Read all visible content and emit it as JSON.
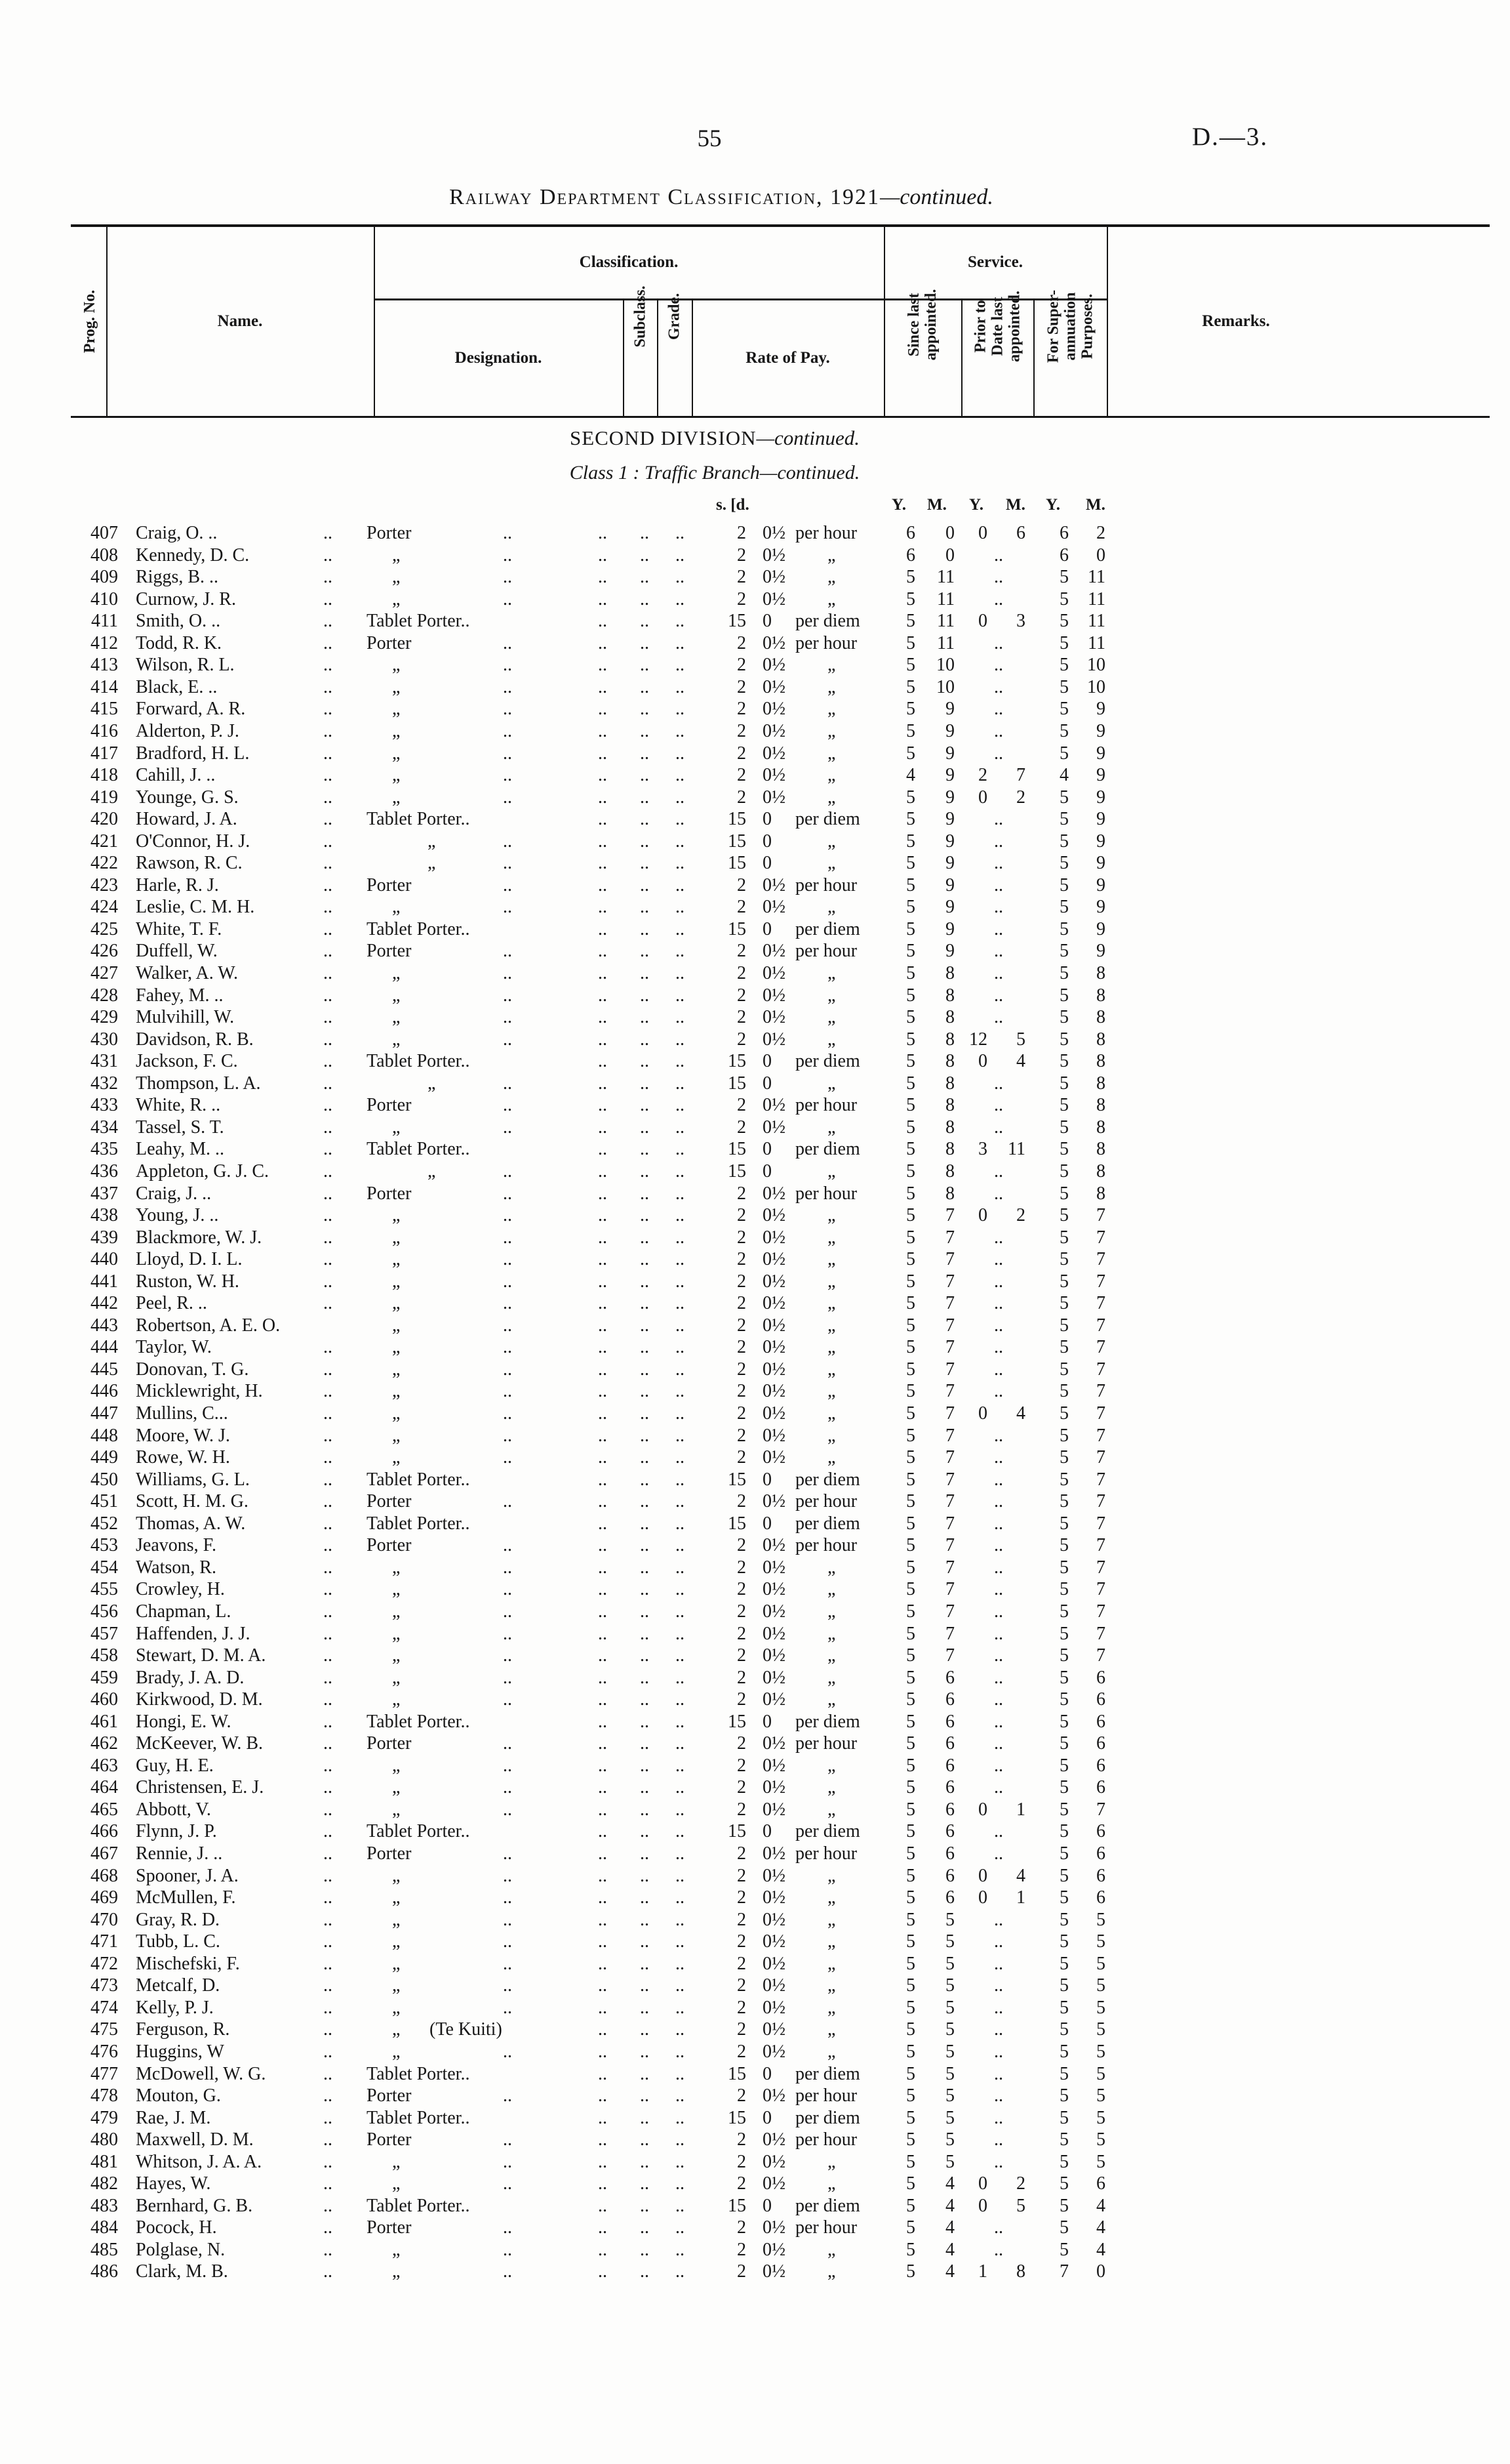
{
  "page": {
    "number": "55",
    "doc_ref": "D.—3."
  },
  "title": {
    "main": "Railway Department Classification, 1921",
    "continued": "—continued."
  },
  "header": {
    "prog": "Prog. No.",
    "name": "Name.",
    "classification": "Classification.",
    "designation": "Designation.",
    "subclass": "Subclass.",
    "grade": "Grade.",
    "rate_of_pay": "Rate of Pay.",
    "service": "Service.",
    "since": "Since last\nappointed.",
    "prior": "Prior to\nDate last\nappointed.",
    "superannuation": "For Super-\nannuation\nPurposes.",
    "remarks": "Remarks."
  },
  "section": {
    "division": "SECOND DIVISION",
    "division_continued": "—continued.",
    "class_line": "Class 1 :  Traffic Branch—continued."
  },
  "units": {
    "sd": "s. [d.",
    "ym": [
      "Y.",
      "M.",
      "Y.",
      "M.",
      "Y.",
      "M."
    ]
  },
  "marks": {
    "ditto": "„",
    "dots": "..",
    "te_kuiti": "(Te Kuiti)"
  },
  "table": {
    "rows": [
      [
        "407",
        "Craig, O. ..",
        "Porter",
        "2",
        "0½",
        "per hour",
        "6",
        "0",
        "0",
        "6",
        "6",
        "2"
      ],
      [
        "408",
        "Kennedy, D. C.",
        "ditto",
        "2",
        "0½",
        "ditto",
        "6",
        "0",
        "",
        "",
        "6",
        "0"
      ],
      [
        "409",
        "Riggs, B. ..",
        "ditto",
        "2",
        "0½",
        "ditto",
        "5",
        "11",
        "",
        "",
        "5",
        "11"
      ],
      [
        "410",
        "Curnow, J. R.",
        "ditto",
        "2",
        "0½",
        "ditto",
        "5",
        "11",
        "",
        "",
        "5",
        "11"
      ],
      [
        "411",
        "Smith, O. ..",
        "Tablet Porter..",
        "15",
        "0",
        "per diem",
        "5",
        "11",
        "0",
        "3",
        "5",
        "11"
      ],
      [
        "412",
        "Todd, R. K.",
        "Porter",
        "2",
        "0½",
        "per hour",
        "5",
        "11",
        "",
        "",
        "5",
        "11"
      ],
      [
        "413",
        "Wilson, R. L.",
        "ditto",
        "2",
        "0½",
        "ditto",
        "5",
        "10",
        "",
        "",
        "5",
        "10"
      ],
      [
        "414",
        "Black, E. ..",
        "ditto",
        "2",
        "0½",
        "ditto",
        "5",
        "10",
        "",
        "",
        "5",
        "10"
      ],
      [
        "415",
        "Forward, A. R.",
        "ditto",
        "2",
        "0½",
        "ditto",
        "5",
        "9",
        "",
        "",
        "5",
        "9"
      ],
      [
        "416",
        "Alderton, P. J.",
        "ditto",
        "2",
        "0½",
        "ditto",
        "5",
        "9",
        "",
        "",
        "5",
        "9"
      ],
      [
        "417",
        "Bradford, H. L.",
        "ditto",
        "2",
        "0½",
        "ditto",
        "5",
        "9",
        "",
        "",
        "5",
        "9"
      ],
      [
        "418",
        "Cahill, J. ..",
        "ditto",
        "2",
        "0½",
        "ditto",
        "4",
        "9",
        "2",
        "7",
        "4",
        "9"
      ],
      [
        "419",
        "Younge, G. S.",
        "ditto",
        "2",
        "0½",
        "ditto",
        "5",
        "9",
        "0",
        "2",
        "5",
        "9"
      ],
      [
        "420",
        "Howard, J. A.",
        "Tablet Porter..",
        "15",
        "0",
        "per diem",
        "5",
        "9",
        "",
        "",
        "5",
        "9"
      ],
      [
        "421",
        "O'Connor, H. J.",
        "ditto-tablet",
        "15",
        "0",
        "ditto",
        "5",
        "9",
        "",
        "",
        "5",
        "9"
      ],
      [
        "422",
        "Rawson, R. C.",
        "ditto-tablet",
        "15",
        "0",
        "ditto",
        "5",
        "9",
        "",
        "",
        "5",
        "9"
      ],
      [
        "423",
        "Harle, R. J.",
        "Porter",
        "2",
        "0½",
        "per hour",
        "5",
        "9",
        "",
        "",
        "5",
        "9"
      ],
      [
        "424",
        "Leslie, C. M. H.",
        "ditto",
        "2",
        "0½",
        "ditto",
        "5",
        "9",
        "",
        "",
        "5",
        "9"
      ],
      [
        "425",
        "White, T. F.",
        "Tablet Porter..",
        "15",
        "0",
        "per diem",
        "5",
        "9",
        "",
        "",
        "5",
        "9"
      ],
      [
        "426",
        "Duffell, W.",
        "Porter",
        "2",
        "0½",
        "per hour",
        "5",
        "9",
        "",
        "",
        "5",
        "9"
      ],
      [
        "427",
        "Walker, A. W.",
        "ditto",
        "2",
        "0½",
        "ditto",
        "5",
        "8",
        "",
        "",
        "5",
        "8"
      ],
      [
        "428",
        "Fahey, M. ..",
        "ditto",
        "2",
        "0½",
        "ditto",
        "5",
        "8",
        "",
        "",
        "5",
        "8"
      ],
      [
        "429",
        "Mulvihill, W.",
        "ditto",
        "2",
        "0½",
        "ditto",
        "5",
        "8",
        "",
        "",
        "5",
        "8"
      ],
      [
        "430",
        "Davidson, R. B.",
        "ditto",
        "2",
        "0½",
        "ditto",
        "5",
        "8",
        "12",
        "5",
        "5",
        "8"
      ],
      [
        "431",
        "Jackson, F. C.",
        "Tablet Porter..",
        "15",
        "0",
        "per diem",
        "5",
        "8",
        "0",
        "4",
        "5",
        "8"
      ],
      [
        "432",
        "Thompson, L. A.",
        "ditto-tablet",
        "15",
        "0",
        "ditto",
        "5",
        "8",
        "",
        "",
        "5",
        "8"
      ],
      [
        "433",
        "White, R. ..",
        "Porter",
        "2",
        "0½",
        "per hour",
        "5",
        "8",
        "",
        "",
        "5",
        "8"
      ],
      [
        "434",
        "Tassel, S. T.",
        "ditto",
        "2",
        "0½",
        "ditto",
        "5",
        "8",
        "",
        "",
        "5",
        "8"
      ],
      [
        "435",
        "Leahy, M. ..",
        "Tablet Porter..",
        "15",
        "0",
        "per diem",
        "5",
        "8",
        "3",
        "11",
        "5",
        "8"
      ],
      [
        "436",
        "Appleton, G. J. C.",
        "ditto-tablet",
        "15",
        "0",
        "ditto",
        "5",
        "8",
        "",
        "",
        "5",
        "8"
      ],
      [
        "437",
        "Craig, J. ..",
        "Porter",
        "2",
        "0½",
        "per hour",
        "5",
        "8",
        "",
        "",
        "5",
        "8"
      ],
      [
        "438",
        "Young, J. ..",
        "ditto",
        "2",
        "0½",
        "ditto",
        "5",
        "7",
        "0",
        "2",
        "5",
        "7"
      ],
      [
        "439",
        "Blackmore, W. J.",
        "ditto",
        "2",
        "0½",
        "ditto",
        "5",
        "7",
        "",
        "",
        "5",
        "7"
      ],
      [
        "440",
        "Lloyd, D. I. L.",
        "ditto",
        "2",
        "0½",
        "ditto",
        "5",
        "7",
        "",
        "",
        "5",
        "7"
      ],
      [
        "441",
        "Ruston, W. H.",
        "ditto",
        "2",
        "0½",
        "ditto",
        "5",
        "7",
        "",
        "",
        "5",
        "7"
      ],
      [
        "442",
        "Peel, R. ..",
        "ditto",
        "2",
        "0½",
        "ditto",
        "5",
        "7",
        "",
        "",
        "5",
        "7"
      ],
      [
        "443",
        "Robertson, A. E. O.",
        "ditto",
        "2",
        "0½",
        "ditto",
        "5",
        "7",
        "",
        "",
        "5",
        "7"
      ],
      [
        "444",
        "Taylor, W.",
        "ditto",
        "2",
        "0½",
        "ditto",
        "5",
        "7",
        "",
        "",
        "5",
        "7"
      ],
      [
        "445",
        "Donovan, T. G.",
        "ditto",
        "2",
        "0½",
        "ditto",
        "5",
        "7",
        "",
        "",
        "5",
        "7"
      ],
      [
        "446",
        "Micklewright, H.",
        "ditto",
        "2",
        "0½",
        "ditto",
        "5",
        "7",
        "",
        "",
        "5",
        "7"
      ],
      [
        "447",
        "Mullins, C...",
        "ditto",
        "2",
        "0½",
        "ditto",
        "5",
        "7",
        "0",
        "4",
        "5",
        "7"
      ],
      [
        "448",
        "Moore, W. J.",
        "ditto",
        "2",
        "0½",
        "ditto",
        "5",
        "7",
        "",
        "",
        "5",
        "7"
      ],
      [
        "449",
        "Rowe, W. H.",
        "ditto",
        "2",
        "0½",
        "ditto",
        "5",
        "7",
        "",
        "",
        "5",
        "7"
      ],
      [
        "450",
        "Williams, G. L.",
        "Tablet Porter..",
        "15",
        "0",
        "per diem",
        "5",
        "7",
        "",
        "",
        "5",
        "7"
      ],
      [
        "451",
        "Scott, H. M. G.",
        "Porter",
        "2",
        "0½",
        "per hour",
        "5",
        "7",
        "",
        "",
        "5",
        "7"
      ],
      [
        "452",
        "Thomas, A. W.",
        "Tablet Porter..",
        "15",
        "0",
        "per diem",
        "5",
        "7",
        "",
        "",
        "5",
        "7"
      ],
      [
        "453",
        "Jeavons, F.",
        "Porter",
        "2",
        "0½",
        "per hour",
        "5",
        "7",
        "",
        "",
        "5",
        "7"
      ],
      [
        "454",
        "Watson, R.",
        "ditto",
        "2",
        "0½",
        "ditto",
        "5",
        "7",
        "",
        "",
        "5",
        "7"
      ],
      [
        "455",
        "Crowley, H.",
        "ditto",
        "2",
        "0½",
        "ditto",
        "5",
        "7",
        "",
        "",
        "5",
        "7"
      ],
      [
        "456",
        "Chapman, L.",
        "ditto",
        "2",
        "0½",
        "ditto",
        "5",
        "7",
        "",
        "",
        "5",
        "7"
      ],
      [
        "457",
        "Haffenden, J. J.",
        "ditto",
        "2",
        "0½",
        "ditto",
        "5",
        "7",
        "",
        "",
        "5",
        "7"
      ],
      [
        "458",
        "Stewart, D. M. A.",
        "ditto",
        "2",
        "0½",
        "ditto",
        "5",
        "7",
        "",
        "",
        "5",
        "7"
      ],
      [
        "459",
        "Brady, J. A. D.",
        "ditto",
        "2",
        "0½",
        "ditto",
        "5",
        "6",
        "",
        "",
        "5",
        "6"
      ],
      [
        "460",
        "Kirkwood, D. M.",
        "ditto",
        "2",
        "0½",
        "ditto",
        "5",
        "6",
        "",
        "",
        "5",
        "6"
      ],
      [
        "461",
        "Hongi, E. W.",
        "Tablet Porter..",
        "15",
        "0",
        "per diem",
        "5",
        "6",
        "",
        "",
        "5",
        "6"
      ],
      [
        "462",
        "McKeever, W. B.",
        "Porter",
        "2",
        "0½",
        "per hour",
        "5",
        "6",
        "",
        "",
        "5",
        "6"
      ],
      [
        "463",
        "Guy, H. E.",
        "ditto",
        "2",
        "0½",
        "ditto",
        "5",
        "6",
        "",
        "",
        "5",
        "6"
      ],
      [
        "464",
        "Christensen, E. J.",
        "ditto",
        "2",
        "0½",
        "ditto",
        "5",
        "6",
        "",
        "",
        "5",
        "6"
      ],
      [
        "465",
        "Abbott, V.",
        "ditto",
        "2",
        "0½",
        "ditto",
        "5",
        "6",
        "0",
        "1",
        "5",
        "7"
      ],
      [
        "466",
        "Flynn, J. P.",
        "Tablet Porter..",
        "15",
        "0",
        "per diem",
        "5",
        "6",
        "",
        "",
        "5",
        "6"
      ],
      [
        "467",
        "Rennie, J. ..",
        "Porter",
        "2",
        "0½",
        "per hour",
        "5",
        "6",
        "",
        "",
        "5",
        "6"
      ],
      [
        "468",
        "Spooner, J. A.",
        "ditto",
        "2",
        "0½",
        "ditto",
        "5",
        "6",
        "0",
        "4",
        "5",
        "6"
      ],
      [
        "469",
        "McMullen, F.",
        "ditto",
        "2",
        "0½",
        "ditto",
        "5",
        "6",
        "0",
        "1",
        "5",
        "6"
      ],
      [
        "470",
        "Gray, R. D.",
        "ditto",
        "2",
        "0½",
        "ditto",
        "5",
        "5",
        "",
        "",
        "5",
        "5"
      ],
      [
        "471",
        "Tubb, L. C.",
        "ditto",
        "2",
        "0½",
        "ditto",
        "5",
        "5",
        "",
        "",
        "5",
        "5"
      ],
      [
        "472",
        "Mischefski, F.",
        "ditto",
        "2",
        "0½",
        "ditto",
        "5",
        "5",
        "",
        "",
        "5",
        "5"
      ],
      [
        "473",
        "Metcalf, D.",
        "ditto",
        "2",
        "0½",
        "ditto",
        "5",
        "5",
        "",
        "",
        "5",
        "5"
      ],
      [
        "474",
        "Kelly, P. J.",
        "ditto",
        "2",
        "0½",
        "ditto",
        "5",
        "5",
        "",
        "",
        "5",
        "5"
      ],
      [
        "475",
        "Ferguson, R.",
        "ditto-te-kuiti",
        "2",
        "0½",
        "ditto",
        "5",
        "5",
        "",
        "",
        "5",
        "5"
      ],
      [
        "476",
        "Huggins, W",
        "ditto",
        "2",
        "0½",
        "ditto",
        "5",
        "5",
        "",
        "",
        "5",
        "5"
      ],
      [
        "477",
        "McDowell, W. G.",
        "Tablet Porter..",
        "15",
        "0",
        "per diem",
        "5",
        "5",
        "",
        "",
        "5",
        "5"
      ],
      [
        "478",
        "Mouton, G.",
        "Porter",
        "2",
        "0½",
        "per hour",
        "5",
        "5",
        "",
        "",
        "5",
        "5"
      ],
      [
        "479",
        "Rae, J. M.",
        "Tablet Porter..",
        "15",
        "0",
        "per diem",
        "5",
        "5",
        "",
        "",
        "5",
        "5"
      ],
      [
        "480",
        "Maxwell, D. M.",
        "Porter",
        "2",
        "0½",
        "per hour",
        "5",
        "5",
        "",
        "",
        "5",
        "5"
      ],
      [
        "481",
        "Whitson, J. A. A.",
        "ditto",
        "2",
        "0½",
        "ditto",
        "5",
        "5",
        "",
        "",
        "5",
        "5"
      ],
      [
        "482",
        "Hayes, W.",
        "ditto",
        "2",
        "0½",
        "ditto",
        "5",
        "4",
        "0",
        "2",
        "5",
        "6"
      ],
      [
        "483",
        "Bernhard, G. B.",
        "Tablet Porter..",
        "15",
        "0",
        "per diem",
        "5",
        "4",
        "0",
        "5",
        "5",
        "4"
      ],
      [
        "484",
        "Pocock, H.",
        "Porter",
        "2",
        "0½",
        "per hour",
        "5",
        "4",
        "",
        "",
        "5",
        "4"
      ],
      [
        "485",
        "Polglase, N.",
        "ditto",
        "2",
        "0½",
        "ditto",
        "5",
        "4",
        "",
        "",
        "5",
        "4"
      ],
      [
        "486",
        "Clark, M. B.",
        "ditto",
        "2",
        "0½",
        "ditto",
        "5",
        "4",
        "1",
        "8",
        "7",
        "0"
      ]
    ]
  }
}
